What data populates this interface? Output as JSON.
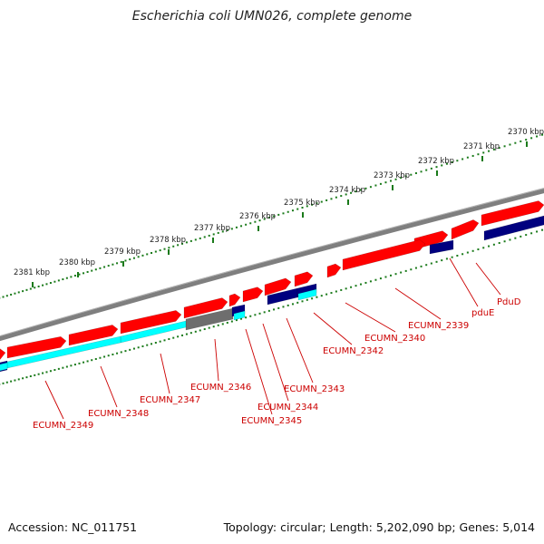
{
  "title": "Escherichia coli UMN026, complete genome",
  "footer": {
    "accession": "Accession: NC_011751",
    "summary": "Topology: circular; Length: 5,202,090 bp; Genes: 5,014"
  },
  "colors": {
    "backbone": "#7f7f7f",
    "forward_cds": "#ff0000",
    "other_feature": "#6e6e6e",
    "reverse_cds": "#00007f",
    "cyan_feature": "#00ffff",
    "tick": "#1a7a1a",
    "label": "#cc0000"
  },
  "scale_labels": [
    "2370 kbp",
    "2371 kbp",
    "2372 kbp",
    "2373 kbp",
    "2374 kbp",
    "2375 kbp",
    "2376 kbp",
    "2377 kbp",
    "2378 kbp",
    "2379 kbp",
    "2380 kbp",
    "2381 kbp"
  ],
  "gene_labels": [
    "PduD",
    "pduE",
    "ECUMN_2339",
    "ECUMN_2340",
    "ECUMN_2342",
    "ECUMN_2343",
    "ECUMN_2344",
    "ECUMN_2345",
    "ECUMN_2346",
    "ECUMN_2347",
    "ECUMN_2348",
    "ECUMN_2349"
  ]
}
